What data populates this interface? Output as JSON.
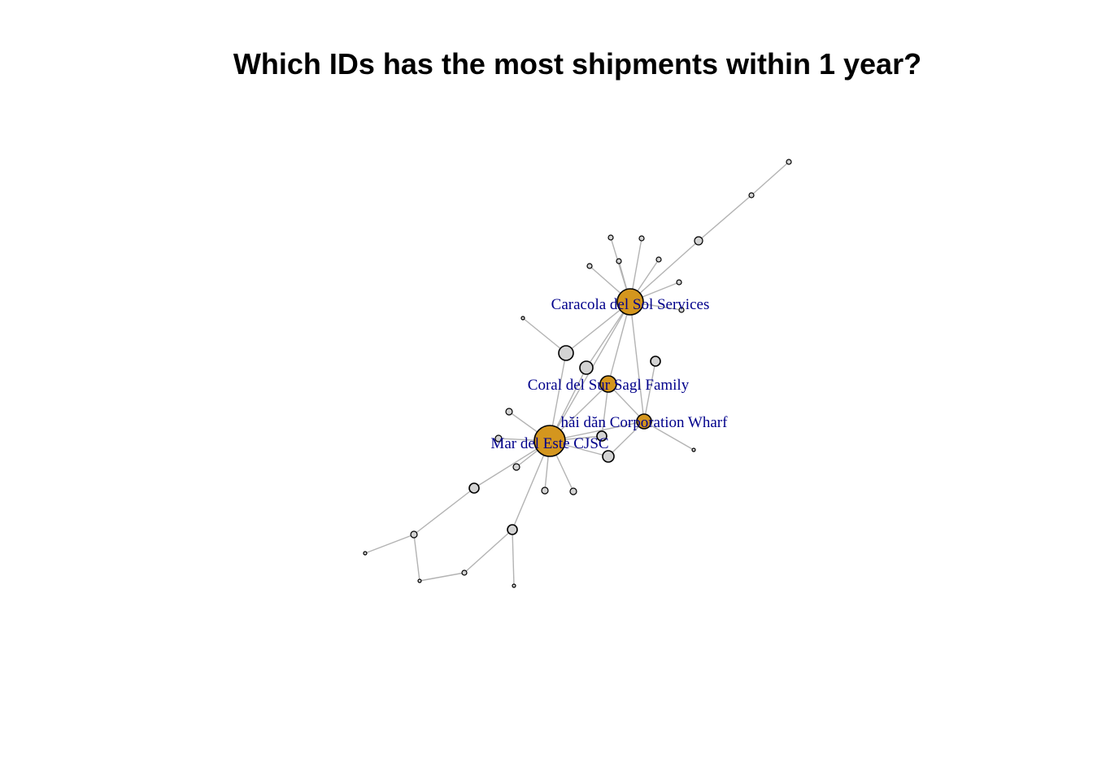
{
  "title": "Which IDs has the most shipments within 1 year?",
  "colors": {
    "highlight_node": "#D4961E",
    "regular_node": "#D3D3D3",
    "node_stroke": "#000000",
    "edge": "#B3B3B3",
    "label": "#00008B",
    "background": "#FFFFFF"
  },
  "network": {
    "labeled_nodes": [
      {
        "id": "caracola",
        "label": "Caracola del Sol Services",
        "rank": 2
      },
      {
        "id": "coral",
        "label": "Coral del Sur Sagl Family",
        "rank": 4
      },
      {
        "id": "haidan",
        "label": "hăi dăn Corporation Wharf",
        "rank": 3
      },
      {
        "id": "mardeleste",
        "label": "Mar del Este CJSC",
        "rank": 1
      }
    ],
    "unlabeled_node_count": 34,
    "edge_count": 43
  }
}
